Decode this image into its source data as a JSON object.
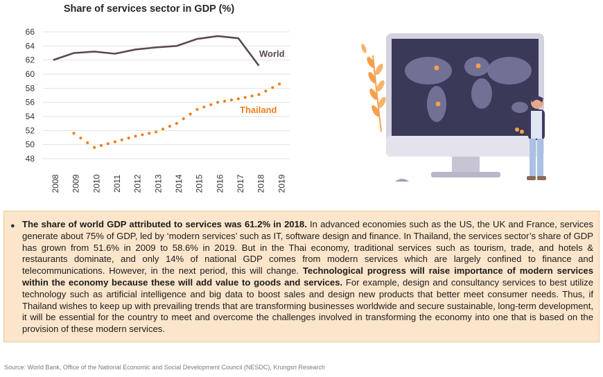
{
  "chart_data": {
    "type": "line",
    "title": "Share of services sector in GDP (%)",
    "x": [
      "2008",
      "2009",
      "2010",
      "2011",
      "2012",
      "2013",
      "2014",
      "2015",
      "2016",
      "2017",
      "2018",
      "2019"
    ],
    "yticks": [
      48,
      50,
      52,
      54,
      56,
      58,
      60,
      62,
      64,
      66
    ],
    "ylim": [
      48,
      66
    ],
    "grid": "horizontal",
    "series": [
      {
        "name": "World",
        "color": "#5b4a50",
        "style": "solid",
        "values": [
          62.0,
          63.0,
          63.2,
          62.9,
          63.5,
          63.8,
          64.0,
          65.0,
          65.4,
          65.1,
          61.2,
          null
        ]
      },
      {
        "name": "Thailand",
        "color": "#ef7f1a",
        "style": "dotted",
        "values": [
          null,
          51.6,
          49.6,
          50.4,
          51.2,
          51.8,
          53.0,
          55.0,
          56.0,
          56.5,
          57.1,
          58.6
        ]
      }
    ]
  },
  "text_box": {
    "p1_bold": "The share of world GDP attributed to services was 61.2% in 2018.",
    "p2": " In advanced economies such as the US, the UK and France, services generate about 75% of GDP, led by ‘modern services’ such as IT, software design and finance. In Thailand, the services sector’s share of GDP has grown from 51.6% in 2009 to 58.6% in 2019. But in the Thai economy, traditional services such as tourism, trade, and hotels & restaurants dominate, and only 14% of national GDP comes from modern services which are largely confined to finance and telecommunications. However, in the next period, this will change. ",
    "p3_bold": "Technological progress will raise importance of modern services within the economy because these will add value to goods and services.",
    "p4": " For example, design and consultancy services to best utilize technology such as artificial intelligence and big data to boost sales and design new products that better meet consumer needs. Thus, if Thailand wishes to keep up with prevailing trends that are transforming businesses worldwide and secure sustainable, long-term development, it will be essential for the country to meet and overcome the challenges involved in transforming the economy into one that is based on the provision of these modern services."
  },
  "source": "Source: World Bank, Office of the National Economic and Social Development Council (NESDC), Krungsri Research",
  "illustration": {
    "colors": {
      "monitor": "#d4d2de",
      "screen": "#3a3958",
      "map": "#7b7aa0",
      "accent": "#f6a04d",
      "person_jacket": "#3e3a63"
    },
    "icons": [
      "location-pin-icon",
      "world-map-icon",
      "wheat-icon",
      "person-icon"
    ]
  }
}
